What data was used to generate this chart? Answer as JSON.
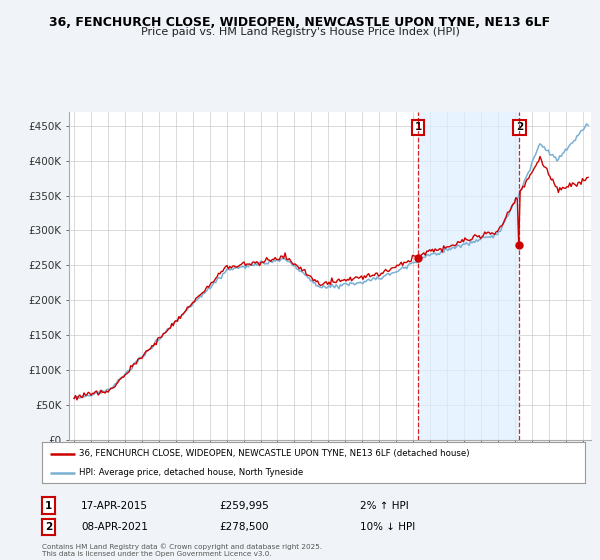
{
  "title_line1": "36, FENCHURCH CLOSE, WIDEOPEN, NEWCASTLE UPON TYNE, NE13 6LF",
  "title_line2": "Price paid vs. HM Land Registry's House Price Index (HPI)",
  "ylabel_ticks": [
    "£0",
    "£50K",
    "£100K",
    "£150K",
    "£200K",
    "£250K",
    "£300K",
    "£350K",
    "£400K",
    "£450K"
  ],
  "ytick_values": [
    0,
    50000,
    100000,
    150000,
    200000,
    250000,
    300000,
    350000,
    400000,
    450000
  ],
  "ylim": [
    0,
    470000
  ],
  "xlim_start": 1994.7,
  "xlim_end": 2025.5,
  "background_color": "#f0f4f8",
  "plot_bg_color": "#ffffff",
  "hpi_color": "#7ab0d4",
  "price_color": "#cc0000",
  "shade_color": "#ddeeff",
  "marker1_date": 2015.29,
  "marker2_date": 2021.27,
  "annotation1": {
    "label": "1",
    "date": "17-APR-2015",
    "price": "£259,995",
    "change": "2% ↑ HPI"
  },
  "annotation2": {
    "label": "2",
    "date": "08-APR-2021",
    "price": "£278,500",
    "change": "10% ↓ HPI"
  },
  "legend_line1": "36, FENCHURCH CLOSE, WIDEOPEN, NEWCASTLE UPON TYNE, NE13 6LF (detached house)",
  "legend_line2": "HPI: Average price, detached house, North Tyneside",
  "footer": "Contains HM Land Registry data © Crown copyright and database right 2025.\nThis data is licensed under the Open Government Licence v3.0.",
  "grid_color": "#cccccc"
}
